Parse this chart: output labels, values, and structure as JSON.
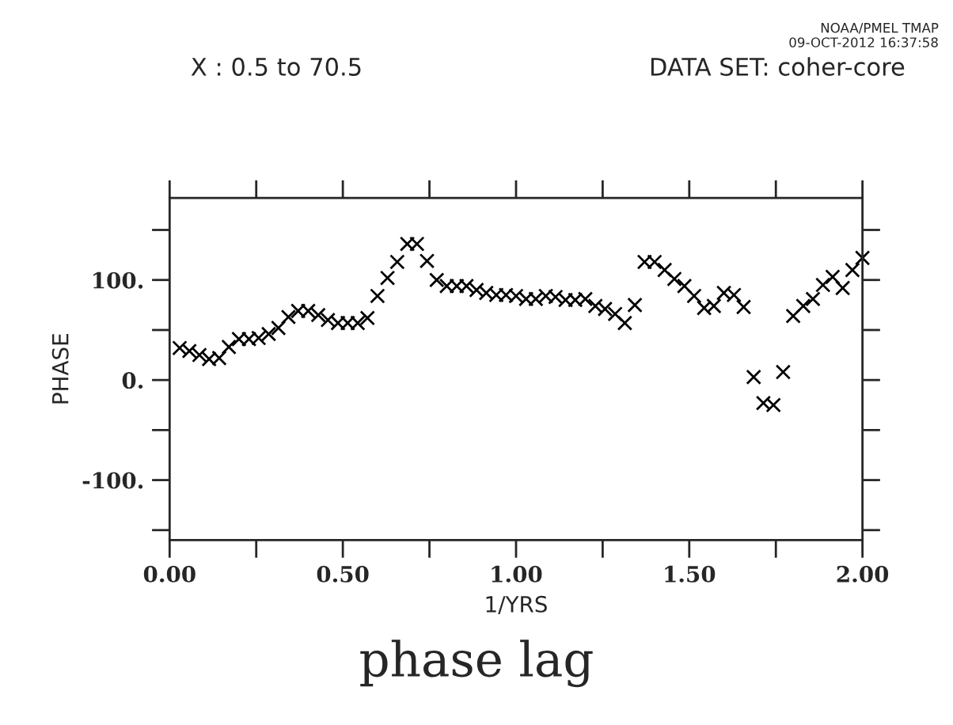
{
  "chart_data": {
    "type": "scatter",
    "title": "phase lag",
    "xlabel": "1/YRS",
    "ylabel": "PHASE",
    "annotations": [
      "X : 0.5 to 70.5",
      "DATA SET: coher-core",
      "NOAA/PMEL TMAP",
      "09-OCT-2012 16:37:58"
    ],
    "x": [
      0.029,
      0.057,
      0.086,
      0.114,
      0.143,
      0.171,
      0.2,
      0.229,
      0.257,
      0.286,
      0.314,
      0.343,
      0.371,
      0.4,
      0.429,
      0.457,
      0.486,
      0.514,
      0.543,
      0.571,
      0.6,
      0.629,
      0.657,
      0.686,
      0.714,
      0.743,
      0.771,
      0.8,
      0.829,
      0.857,
      0.886,
      0.914,
      0.943,
      0.971,
      1.0,
      1.029,
      1.057,
      1.086,
      1.114,
      1.143,
      1.171,
      1.2,
      1.229,
      1.257,
      1.286,
      1.314,
      1.343,
      1.371,
      1.4,
      1.429,
      1.457,
      1.486,
      1.514,
      1.543,
      1.571,
      1.6,
      1.629,
      1.657,
      1.686,
      1.714,
      1.743,
      1.771,
      1.8,
      1.829,
      1.857,
      1.886,
      1.914,
      1.943,
      1.971,
      2.0
    ],
    "series": [
      {
        "color": "#000000",
        "values": [
          32,
          29,
          25,
          21,
          22,
          33,
          41,
          41,
          42,
          46,
          52,
          63,
          69,
          69,
          65,
          60,
          57,
          57,
          57,
          62,
          84,
          102,
          118,
          136,
          136,
          119,
          100,
          94,
          94,
          94,
          90,
          87,
          85,
          85,
          84,
          81,
          81,
          84,
          83,
          80,
          80,
          81,
          74,
          71,
          66,
          57,
          75,
          118,
          118,
          110,
          101,
          94,
          84,
          72,
          74,
          87,
          85,
          73,
          3,
          -23,
          -25,
          8,
          64,
          74,
          81,
          95,
          103,
          92,
          110,
          122
        ]
      }
    ],
    "marker": "cross",
    "grid": false,
    "xlim": [
      0,
      2.0
    ],
    "xticks": [
      {
        "value": 0,
        "label": "0.00"
      },
      {
        "value": 0.25,
        "label": null
      },
      {
        "value": 0.5,
        "label": "0.50"
      },
      {
        "value": 0.75,
        "label": null
      },
      {
        "value": 1.0,
        "label": "1.00"
      },
      {
        "value": 1.25,
        "label": null
      },
      {
        "value": 1.5,
        "label": "1.50"
      },
      {
        "value": 1.75,
        "label": null
      },
      {
        "value": 2.0,
        "label": "2.00"
      }
    ],
    "ylim": [
      -160,
      182
    ],
    "yticks": [
      {
        "value": -150,
        "label": null
      },
      {
        "value": -100,
        "label": "-100."
      },
      {
        "value": -50,
        "label": null
      },
      {
        "value": 0,
        "label": "0."
      },
      {
        "value": 50,
        "label": null
      },
      {
        "value": 100,
        "label": "100."
      },
      {
        "value": 150,
        "label": null
      }
    ]
  }
}
